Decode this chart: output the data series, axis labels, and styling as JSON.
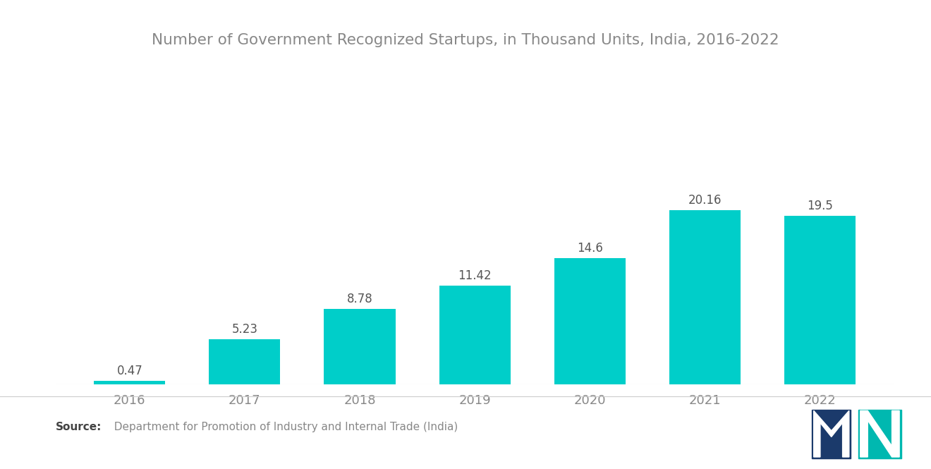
{
  "title": "Number of Government Recognized Startups, in Thousand Units, India, 2016-2022",
  "categories": [
    "2016",
    "2017",
    "2018",
    "2019",
    "2020",
    "2021",
    "2022"
  ],
  "values": [
    0.47,
    5.23,
    8.78,
    11.42,
    14.6,
    20.16,
    19.5
  ],
  "bar_color": "#00CEC9",
  "background_color": "#ffffff",
  "title_fontsize": 15.5,
  "label_fontsize": 12,
  "tick_fontsize": 13,
  "source_bold": "Source:",
  "source_rest": "  Department for Promotion of Industry and Internal Trade (India)",
  "source_fontsize": 11,
  "ylim": [
    0,
    26
  ],
  "bar_width": 0.62,
  "label_color": "#555555",
  "tick_color": "#888888",
  "title_color": "#888888"
}
